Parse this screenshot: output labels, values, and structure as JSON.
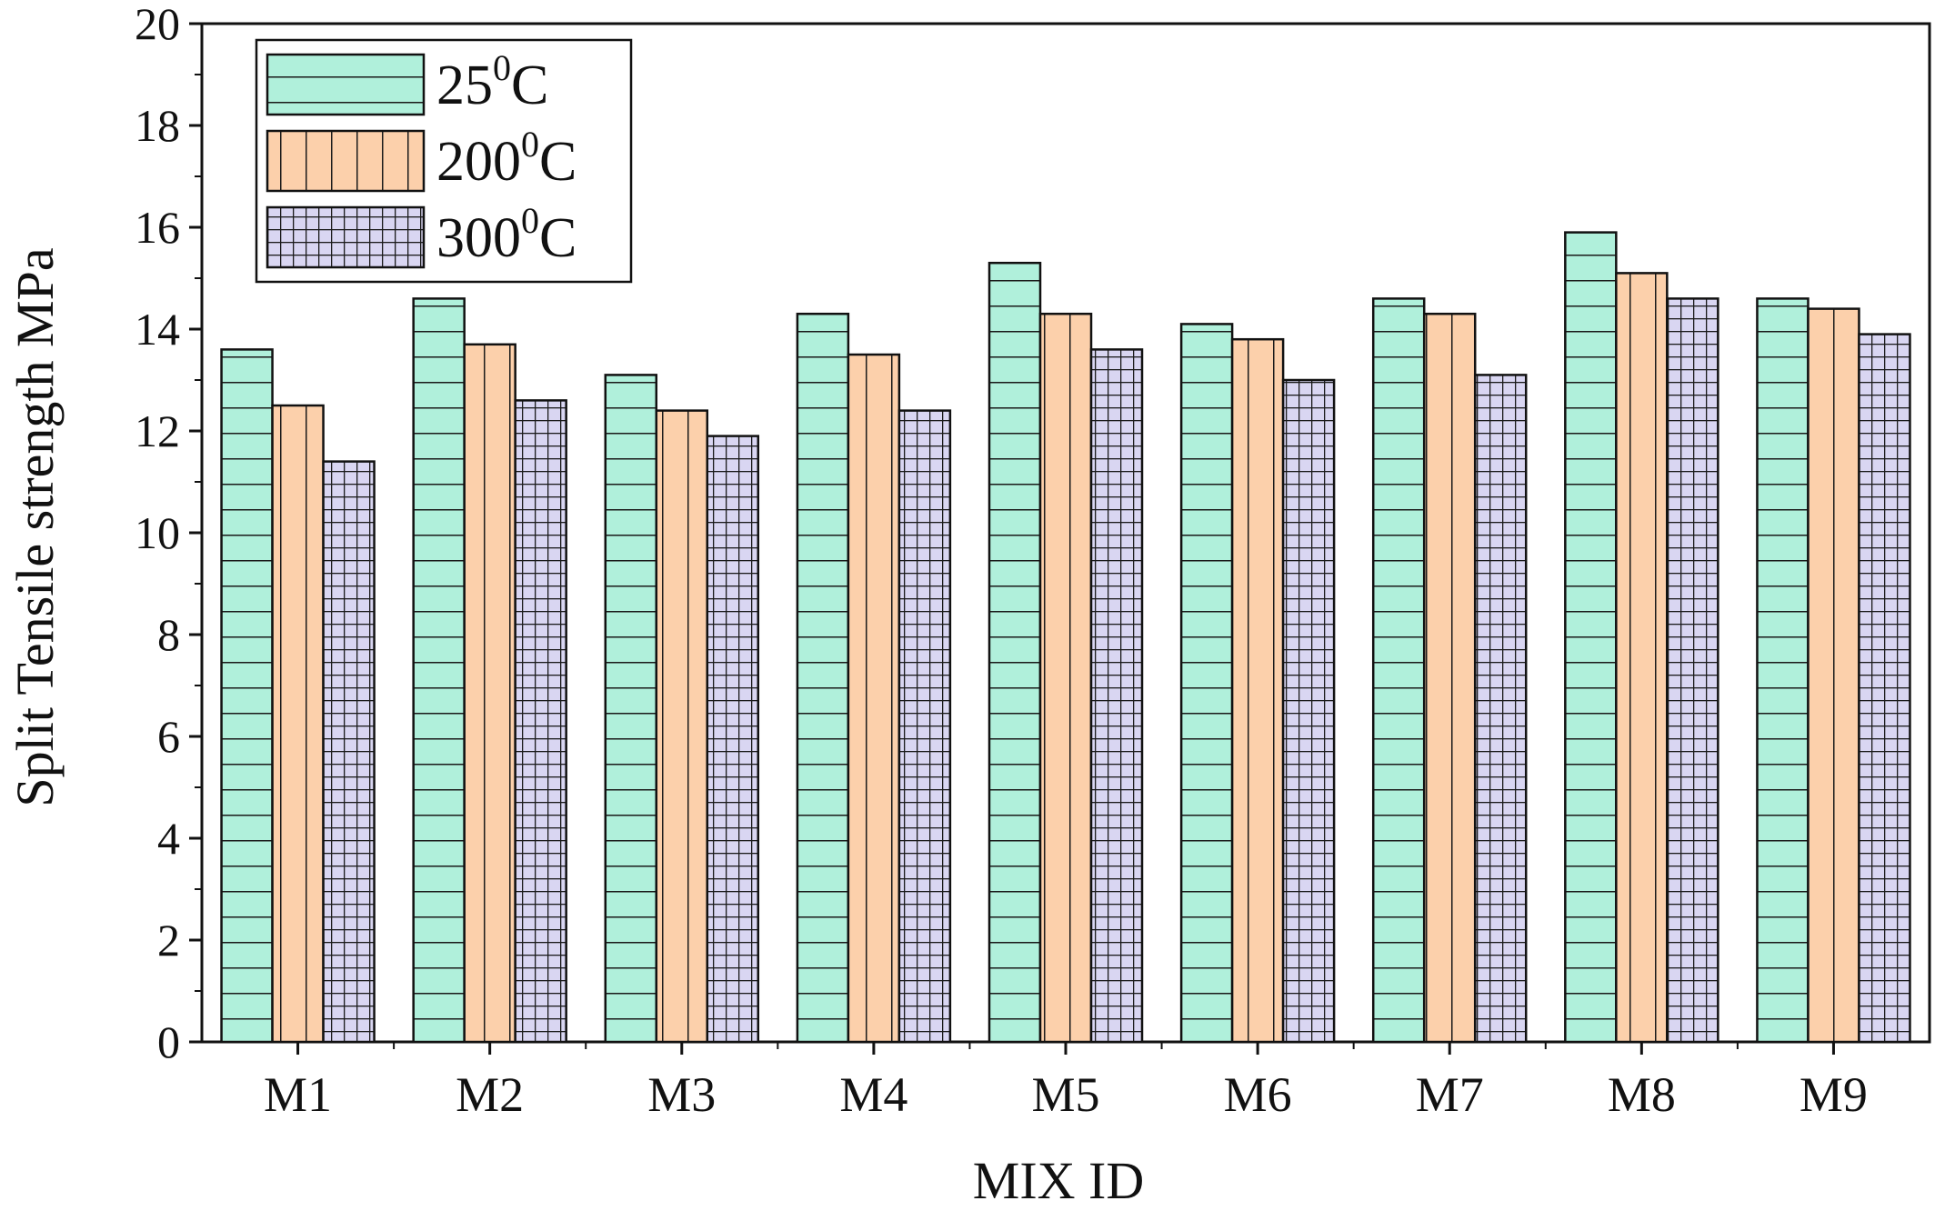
{
  "chart_data": {
    "type": "bar",
    "xlabel": "MIX ID",
    "ylabel": "Split Tensile strength MPa",
    "ylim": [
      0,
      20
    ],
    "yticks": [
      0,
      2,
      4,
      6,
      8,
      10,
      12,
      14,
      16,
      18,
      20
    ],
    "categories": [
      "M1",
      "M2",
      "M3",
      "M4",
      "M5",
      "M6",
      "M7",
      "M8",
      "M9"
    ],
    "legend_position": "top-left",
    "grid": false,
    "series": [
      {
        "name": "25",
        "name_sup": "0",
        "name_suffix": "C",
        "color": "#b0f0db",
        "pattern": "horizontal-lines",
        "values": [
          13.6,
          14.6,
          13.1,
          14.3,
          15.3,
          14.1,
          14.6,
          15.9,
          14.6
        ]
      },
      {
        "name": "200",
        "name_sup": "0",
        "name_suffix": "C",
        "color": "#fcd0ab",
        "pattern": "vertical-lines",
        "values": [
          12.5,
          13.7,
          12.4,
          13.5,
          14.3,
          13.8,
          14.3,
          15.1,
          14.4
        ]
      },
      {
        "name": "300",
        "name_sup": "0",
        "name_suffix": "C",
        "color": "#d9d6f2",
        "pattern": "grid",
        "values": [
          11.4,
          12.6,
          11.9,
          12.4,
          13.6,
          13.0,
          13.1,
          14.6,
          13.9
        ]
      }
    ]
  }
}
